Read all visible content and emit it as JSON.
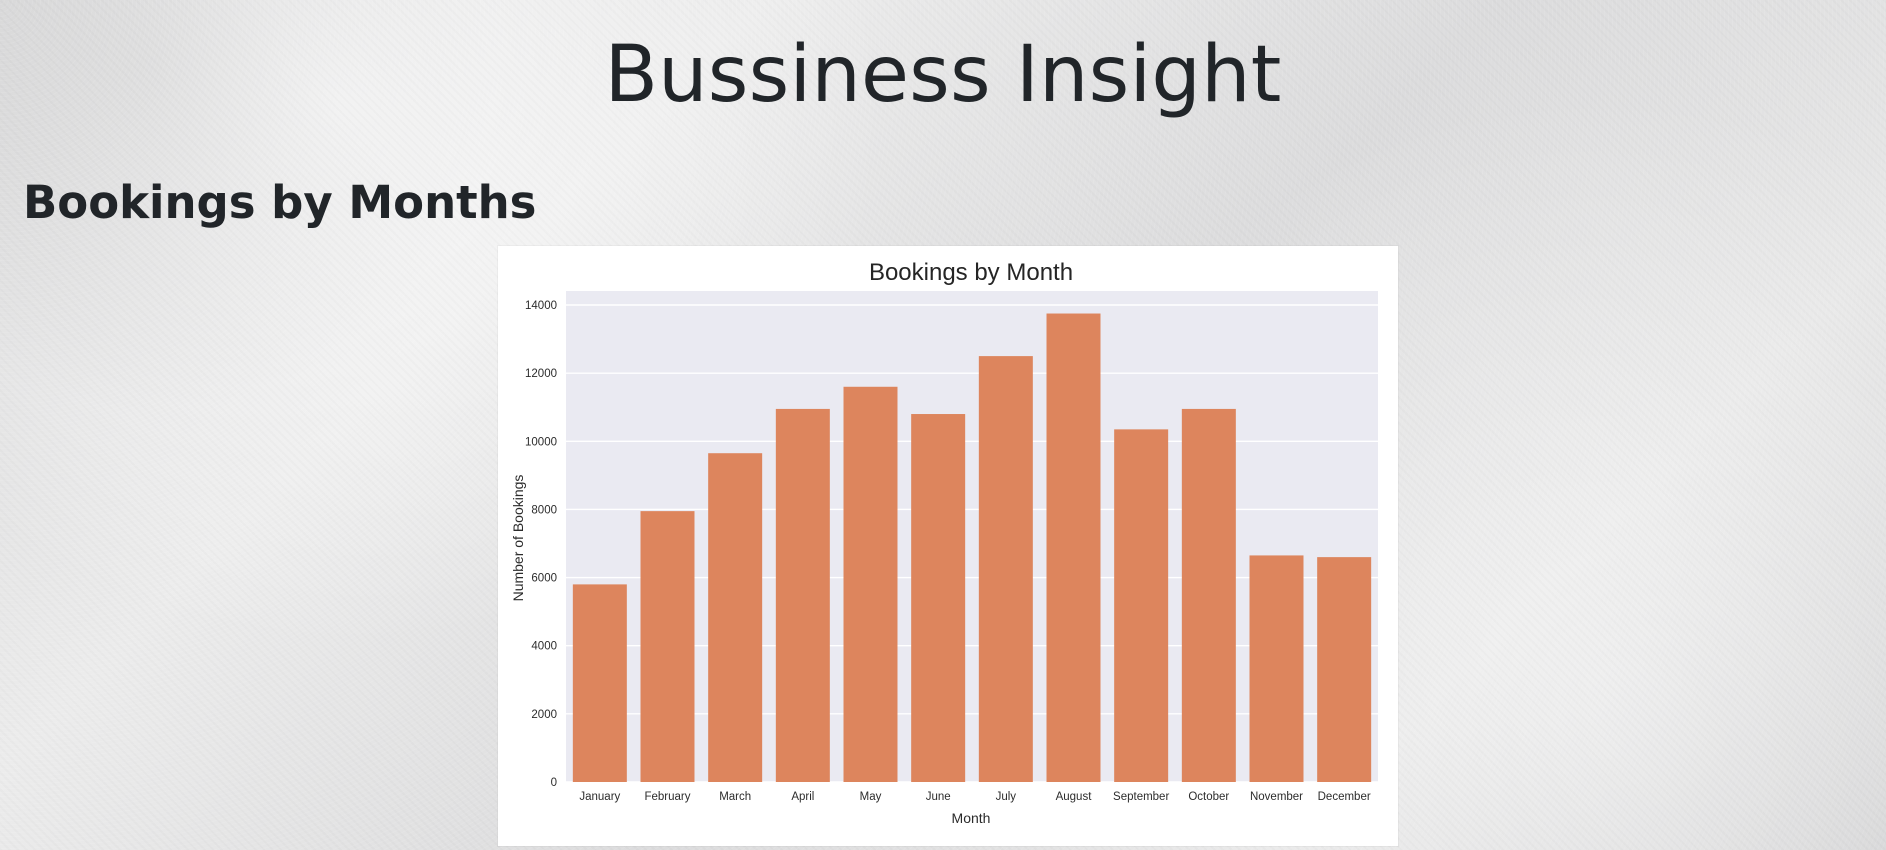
{
  "page": {
    "title": "Bussiness Insight",
    "section_title": "Bookings by Months"
  },
  "chart_data": {
    "type": "bar",
    "title": "Bookings by Month",
    "xlabel": "Month",
    "ylabel": "Number of Bookings",
    "categories": [
      "January",
      "February",
      "March",
      "April",
      "May",
      "June",
      "July",
      "August",
      "September",
      "October",
      "November",
      "December"
    ],
    "values": [
      5800,
      7950,
      9650,
      10950,
      11600,
      10800,
      12500,
      13750,
      10350,
      10950,
      6650,
      6600
    ],
    "ylim": [
      0,
      14000
    ],
    "yticks": [
      0,
      2000,
      4000,
      6000,
      8000,
      10000,
      12000,
      14000
    ],
    "grid": true,
    "colors": {
      "bar": "#DD855D",
      "plot_background": "#EAEAF2",
      "grid": "#FFFFFF"
    }
  }
}
